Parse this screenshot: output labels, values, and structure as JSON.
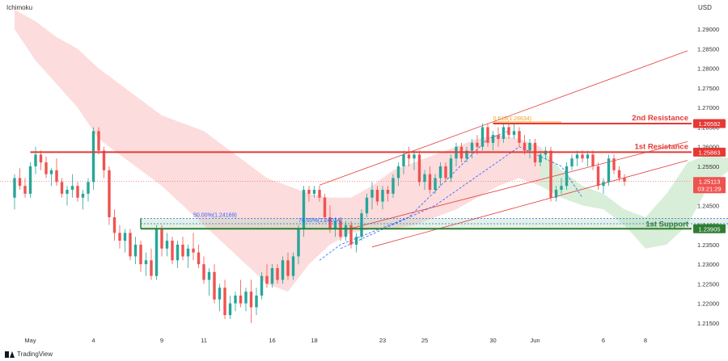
{
  "header": {
    "indicator": "Ichimoku",
    "currency": "USD"
  },
  "footer": {
    "brand": "TradingView"
  },
  "chart_data": {
    "type": "candlestick",
    "y_range": [
      1.2125,
      1.295
    ],
    "y_ticks": [
      "1.29000",
      "1.28500",
      "1.28000",
      "1.27500",
      "1.27000",
      "1.26500",
      "1.26000",
      "1.25500",
      "1.25000",
      "1.24500",
      "1.24000",
      "1.23500",
      "1.23000",
      "1.22500",
      "1.22000",
      "1.21500"
    ],
    "x_ticks": [
      {
        "label": "May",
        "i": 3
      },
      {
        "label": "4",
        "i": 15
      },
      {
        "label": "9",
        "i": 28
      },
      {
        "label": "11",
        "i": 36
      },
      {
        "label": "16",
        "i": 49
      },
      {
        "label": "18",
        "i": 57
      },
      {
        "label": "23",
        "i": 70
      },
      {
        "label": "25",
        "i": 78
      },
      {
        "label": "30",
        "i": 91
      },
      {
        "label": "Jun",
        "i": 99
      },
      {
        "label": "6",
        "i": 112
      },
      {
        "label": "8",
        "i": 120
      }
    ],
    "candles": [
      [
        1.247,
        1.253,
        1.244,
        1.252
      ],
      [
        1.252,
        1.2545,
        1.249,
        1.25
      ],
      [
        1.25,
        1.252,
        1.247,
        1.248
      ],
      [
        1.248,
        1.256,
        1.247,
        1.255
      ],
      [
        1.255,
        1.26,
        1.253,
        1.258
      ],
      [
        1.258,
        1.259,
        1.254,
        1.256
      ],
      [
        1.256,
        1.2575,
        1.252,
        1.253
      ],
      [
        1.253,
        1.2545,
        1.25,
        1.254
      ],
      [
        1.254,
        1.257,
        1.25,
        1.251
      ],
      [
        1.251,
        1.252,
        1.247,
        1.248
      ],
      [
        1.248,
        1.25,
        1.245,
        1.249
      ],
      [
        1.249,
        1.253,
        1.247,
        1.25
      ],
      [
        1.25,
        1.251,
        1.246,
        1.247
      ],
      [
        1.247,
        1.249,
        1.244,
        1.248
      ],
      [
        1.248,
        1.252,
        1.246,
        1.251
      ],
      [
        1.251,
        1.265,
        1.249,
        1.264
      ],
      [
        1.264,
        1.265,
        1.258,
        1.259
      ],
      [
        1.259,
        1.26,
        1.252,
        1.254
      ],
      [
        1.254,
        1.255,
        1.24,
        1.242
      ],
      [
        1.242,
        1.244,
        1.236,
        1.238
      ],
      [
        1.238,
        1.24,
        1.234,
        1.236
      ],
      [
        1.236,
        1.239,
        1.233,
        1.238
      ],
      [
        1.238,
        1.239,
        1.231,
        1.232
      ],
      [
        1.232,
        1.237,
        1.23,
        1.235
      ],
      [
        1.235,
        1.236,
        1.228,
        1.23
      ],
      [
        1.23,
        1.233,
        1.227,
        1.231
      ],
      [
        1.231,
        1.234,
        1.226,
        1.227
      ],
      [
        1.227,
        1.24,
        1.226,
        1.239
      ],
      [
        1.239,
        1.24,
        1.232,
        1.234
      ],
      [
        1.234,
        1.238,
        1.232,
        1.236
      ],
      [
        1.236,
        1.237,
        1.23,
        1.231
      ],
      [
        1.231,
        1.236,
        1.229,
        1.235
      ],
      [
        1.235,
        1.237,
        1.231,
        1.232
      ],
      [
        1.232,
        1.235,
        1.229,
        1.234
      ],
      [
        1.234,
        1.238,
        1.231,
        1.233
      ],
      [
        1.233,
        1.235,
        1.229,
        1.23
      ],
      [
        1.23,
        1.232,
        1.225,
        1.226
      ],
      [
        1.226,
        1.229,
        1.222,
        1.228
      ],
      [
        1.228,
        1.23,
        1.22,
        1.221
      ],
      [
        1.221,
        1.225,
        1.218,
        1.224
      ],
      [
        1.224,
        1.226,
        1.216,
        1.217
      ],
      [
        1.217,
        1.222,
        1.216,
        1.22
      ],
      [
        1.22,
        1.223,
        1.218,
        1.222
      ],
      [
        1.222,
        1.226,
        1.219,
        1.22
      ],
      [
        1.22,
        1.224,
        1.218,
        1.223
      ],
      [
        1.223,
        1.226,
        1.215,
        1.219
      ],
      [
        1.219,
        1.224,
        1.217,
        1.222
      ],
      [
        1.222,
        1.228,
        1.221,
        1.227
      ],
      [
        1.227,
        1.23,
        1.224,
        1.225
      ],
      [
        1.225,
        1.23,
        1.224,
        1.229
      ],
      [
        1.229,
        1.23,
        1.225,
        1.226
      ],
      [
        1.226,
        1.232,
        1.225,
        1.231
      ],
      [
        1.231,
        1.233,
        1.226,
        1.227
      ],
      [
        1.227,
        1.233,
        1.226,
        1.232
      ],
      [
        1.232,
        1.24,
        1.23,
        1.239
      ],
      [
        1.239,
        1.25,
        1.237,
        1.249
      ],
      [
        1.249,
        1.25,
        1.246,
        1.248
      ],
      [
        1.248,
        1.25,
        1.247,
        1.249
      ],
      [
        1.249,
        1.25,
        1.246,
        1.247
      ],
      [
        1.247,
        1.248,
        1.241,
        1.242
      ],
      [
        1.242,
        1.245,
        1.238,
        1.239
      ],
      [
        1.239,
        1.242,
        1.237,
        1.241
      ],
      [
        1.241,
        1.242,
        1.236,
        1.237
      ],
      [
        1.237,
        1.241,
        1.236,
        1.24
      ],
      [
        1.24,
        1.241,
        1.234,
        1.235
      ],
      [
        1.235,
        1.238,
        1.233,
        1.237
      ],
      [
        1.237,
        1.244,
        1.236,
        1.243
      ],
      [
        1.243,
        1.248,
        1.242,
        1.247
      ],
      [
        1.247,
        1.251,
        1.244,
        1.249
      ],
      [
        1.249,
        1.25,
        1.245,
        1.246
      ],
      [
        1.246,
        1.25,
        1.244,
        1.249
      ],
      [
        1.249,
        1.25,
        1.246,
        1.248
      ],
      [
        1.248,
        1.253,
        1.247,
        1.252
      ],
      [
        1.252,
        1.256,
        1.25,
        1.255
      ],
      [
        1.255,
        1.259,
        1.253,
        1.258
      ],
      [
        1.258,
        1.26,
        1.255,
        1.257
      ],
      [
        1.257,
        1.259,
        1.254,
        1.258
      ],
      [
        1.258,
        1.259,
        1.25,
        1.251
      ],
      [
        1.251,
        1.254,
        1.249,
        1.253
      ],
      [
        1.253,
        1.255,
        1.248,
        1.249
      ],
      [
        1.249,
        1.253,
        1.248,
        1.252
      ],
      [
        1.252,
        1.256,
        1.25,
        1.255
      ],
      [
        1.255,
        1.256,
        1.251,
        1.252
      ],
      [
        1.252,
        1.258,
        1.251,
        1.257
      ],
      [
        1.257,
        1.261,
        1.255,
        1.26
      ],
      [
        1.26,
        1.261,
        1.256,
        1.257
      ],
      [
        1.257,
        1.26,
        1.256,
        1.259
      ],
      [
        1.259,
        1.262,
        1.257,
        1.261
      ],
      [
        1.261,
        1.263,
        1.258,
        1.26
      ],
      [
        1.26,
        1.266,
        1.259,
        1.265
      ],
      [
        1.265,
        1.266,
        1.26,
        1.261
      ],
      [
        1.261,
        1.264,
        1.259,
        1.263
      ],
      [
        1.263,
        1.265,
        1.26,
        1.262
      ],
      [
        1.262,
        1.266,
        1.261,
        1.265
      ],
      [
        1.265,
        1.266,
        1.262,
        1.263
      ],
      [
        1.263,
        1.266,
        1.262,
        1.264
      ],
      [
        1.264,
        1.265,
        1.26,
        1.261
      ],
      [
        1.261,
        1.263,
        1.258,
        1.259
      ],
      [
        1.259,
        1.262,
        1.257,
        1.261
      ],
      [
        1.261,
        1.262,
        1.255,
        1.256
      ],
      [
        1.256,
        1.259,
        1.255,
        1.258
      ],
      [
        1.258,
        1.26,
        1.257,
        1.259
      ],
      [
        1.259,
        1.26,
        1.246,
        1.247
      ],
      [
        1.247,
        1.25,
        1.246,
        1.249
      ],
      [
        1.249,
        1.252,
        1.248,
        1.25
      ],
      [
        1.25,
        1.256,
        1.249,
        1.255
      ],
      [
        1.255,
        1.258,
        1.254,
        1.257
      ],
      [
        1.257,
        1.259,
        1.255,
        1.258
      ],
      [
        1.258,
        1.259,
        1.256,
        1.257
      ],
      [
        1.257,
        1.259,
        1.255,
        1.258
      ],
      [
        1.258,
        1.259,
        1.254,
        1.255
      ],
      [
        1.255,
        1.256,
        1.249,
        1.25
      ],
      [
        1.25,
        1.252,
        1.248,
        1.251
      ],
      [
        1.251,
        1.258,
        1.25,
        1.257
      ],
      [
        1.257,
        1.258,
        1.253,
        1.254
      ],
      [
        1.254,
        1.255,
        1.251,
        1.252
      ],
      [
        1.252,
        1.253,
        1.25,
        1.2511
      ]
    ],
    "cloud": [
      [
        0,
        1.295,
        1.29
      ],
      [
        4,
        1.292,
        1.282
      ],
      [
        8,
        1.288,
        1.276
      ],
      [
        12,
        1.285,
        1.27
      ],
      [
        16,
        1.28,
        1.262
      ],
      [
        20,
        1.276,
        1.258
      ],
      [
        24,
        1.272,
        1.254
      ],
      [
        28,
        1.268,
        1.25
      ],
      [
        32,
        1.266,
        1.245
      ],
      [
        36,
        1.264,
        1.24
      ],
      [
        40,
        1.26,
        1.235
      ],
      [
        44,
        1.256,
        1.23
      ],
      [
        48,
        1.252,
        1.225
      ],
      [
        52,
        1.25,
        1.223
      ],
      [
        56,
        1.248,
        1.23
      ],
      [
        60,
        1.247,
        1.235
      ],
      [
        64,
        1.247,
        1.238
      ],
      [
        68,
        1.25,
        1.239
      ],
      [
        72,
        1.254,
        1.239
      ],
      [
        76,
        1.256,
        1.24
      ],
      [
        80,
        1.258,
        1.242
      ],
      [
        84,
        1.26,
        1.244
      ],
      [
        88,
        1.262,
        1.247
      ],
      [
        92,
        1.263,
        1.25
      ],
      [
        96,
        1.262,
        1.252
      ],
      [
        100,
        1.26,
        1.25
      ],
      [
        104,
        1.254,
        1.247
      ],
      [
        108,
        1.25,
        1.245
      ],
      [
        112,
        1.248,
        1.244
      ],
      [
        116,
        1.244,
        1.24
      ],
      [
        120,
        1.242,
        1.234
      ],
      [
        124,
        1.248,
        1.235
      ],
      [
        128,
        1.256,
        1.24
      ],
      [
        132,
        1.258,
        1.25
      ],
      [
        136,
        1.257,
        1.254
      ]
    ],
    "cloud_cross_index": 98,
    "levels": {
      "second_resistance": {
        "price": 1.26592,
        "label": "2nd Resistance",
        "tag": "1.26592"
      },
      "first_resistance": {
        "price": 1.25863,
        "label": "1st Resistance",
        "tag": "1.25863"
      },
      "first_support": {
        "price": 1.23905,
        "label": "1st Support",
        "tag": "1.23905"
      },
      "current": {
        "price": 1.25113,
        "tag": "1.25113",
        "countdown": "03:21:29"
      }
    },
    "fib": {
      "f618": {
        "price": 1.26634,
        "label": "0.618(1.26634)",
        "from_i": 91,
        "to_i": 104
      },
      "f50": {
        "price": 1.24169,
        "label": "50.00%(1.24169)",
        "from_i": 24,
        "to_i": 136
      },
      "f786": {
        "price": 1.24034,
        "label": "78.60%(1.24034)",
        "from_i": 24,
        "to_i": 136
      }
    },
    "support_zone": {
      "from_i": 24,
      "to_i": 136
    },
    "channel": {
      "upper": [
        [
          58,
          1.2502
        ],
        [
          128,
          1.2845
        ]
      ],
      "middle": [
        [
          63,
          1.2388
        ],
        [
          128,
          1.2613
        ]
      ],
      "lower": [
        [
          68,
          1.2344
        ],
        [
          128,
          1.2565
        ]
      ]
    },
    "dashed_paths": [
      [
        [
          58,
          1.231
        ],
        [
          62,
          1.235
        ],
        [
          75,
          1.242
        ],
        [
          90,
          1.262
        ],
        [
          94,
          1.264
        ]
      ],
      [
        [
          62,
          1.234
        ],
        [
          80,
          1.245
        ],
        [
          96,
          1.26
        ],
        [
          104,
          1.255
        ],
        [
          108,
          1.247
        ]
      ]
    ],
    "colors": {
      "up": "#26a69a",
      "down": "#ef5350",
      "cloud_bear": "#fcdcdc",
      "cloud_bull": "#d9eed9",
      "resistance": "#e53935",
      "support": "#2e7d32",
      "fib": "#f0a020",
      "fib_blue": "#2962ff"
    }
  }
}
